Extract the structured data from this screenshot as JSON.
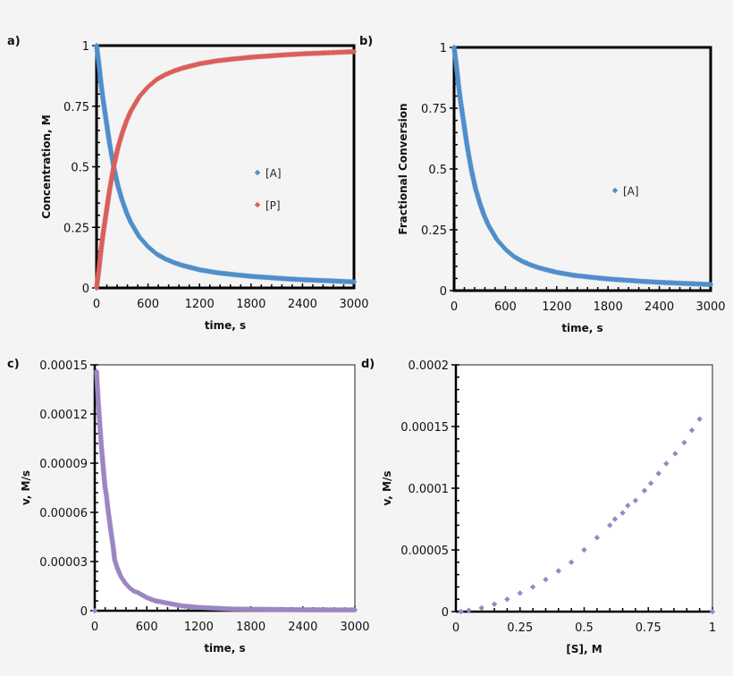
{
  "chart_data": [
    {
      "panel": "a)",
      "type": "scatter",
      "xlabel": "time, s",
      "ylabel": "Concentration, M",
      "xlim": [
        0,
        3000
      ],
      "ylim": [
        0,
        1
      ],
      "xticks": [
        "0",
        "600",
        "1200",
        "1800",
        "2400",
        "3000"
      ],
      "yticks": [
        "0",
        "0.25",
        "0.5",
        "0.75",
        "1"
      ],
      "legend": "right-middle",
      "grid": false,
      "series": [
        {
          "name": "[A]",
          "color": "#4f8fca",
          "x": [
            0,
            25,
            50,
            75,
            100,
            125,
            150,
            175,
            200,
            250,
            300,
            350,
            400,
            450,
            500,
            600,
            700,
            800,
            900,
            1000,
            1200,
            1400,
            1600,
            1800,
            2000,
            2200,
            2400,
            2600,
            2800,
            3000
          ],
          "y": [
            1,
            0.93,
            0.85,
            0.78,
            0.72,
            0.66,
            0.6,
            0.55,
            0.5,
            0.42,
            0.36,
            0.31,
            0.27,
            0.24,
            0.21,
            0.17,
            0.14,
            0.12,
            0.105,
            0.093,
            0.075,
            0.063,
            0.055,
            0.048,
            0.043,
            0.038,
            0.034,
            0.031,
            0.028,
            0.025
          ]
        },
        {
          "name": "[P]",
          "color": "#d9605a",
          "x": [
            0,
            25,
            50,
            75,
            100,
            125,
            150,
            175,
            200,
            250,
            300,
            350,
            400,
            450,
            500,
            600,
            700,
            800,
            900,
            1000,
            1200,
            1400,
            1600,
            1800,
            2000,
            2200,
            2400,
            2600,
            2800,
            3000
          ],
          "y": [
            0,
            0.07,
            0.15,
            0.22,
            0.28,
            0.34,
            0.4,
            0.45,
            0.5,
            0.58,
            0.64,
            0.69,
            0.73,
            0.76,
            0.79,
            0.83,
            0.86,
            0.88,
            0.895,
            0.907,
            0.925,
            0.937,
            0.945,
            0.952,
            0.957,
            0.962,
            0.966,
            0.969,
            0.972,
            0.975
          ]
        }
      ]
    },
    {
      "panel": "b)",
      "type": "scatter",
      "xlabel": "time, s",
      "ylabel": "Fractional Conversion",
      "xlim": [
        0,
        3000
      ],
      "ylim": [
        0,
        1
      ],
      "xticks": [
        "0",
        "600",
        "1200",
        "1800",
        "2400",
        "3000"
      ],
      "yticks": [
        "0",
        "0.25",
        "0.5",
        "0.75",
        "1"
      ],
      "legend": "right-middle",
      "grid": false,
      "series": [
        {
          "name": "[A]",
          "color": "#4f8fca",
          "x": [
            0,
            25,
            50,
            75,
            100,
            125,
            150,
            175,
            200,
            250,
            300,
            350,
            400,
            450,
            500,
            600,
            700,
            800,
            900,
            1000,
            1200,
            1400,
            1600,
            1800,
            2000,
            2200,
            2400,
            2600,
            2800,
            3000
          ],
          "y": [
            1,
            0.93,
            0.85,
            0.78,
            0.72,
            0.66,
            0.6,
            0.55,
            0.5,
            0.42,
            0.36,
            0.31,
            0.27,
            0.24,
            0.21,
            0.17,
            0.14,
            0.12,
            0.105,
            0.093,
            0.075,
            0.063,
            0.055,
            0.048,
            0.043,
            0.038,
            0.034,
            0.031,
            0.028,
            0.025
          ]
        }
      ]
    },
    {
      "panel": "c)",
      "type": "scatter",
      "xlabel": "time, s",
      "ylabel": "v, M/s",
      "xlim": [
        0,
        3000
      ],
      "ylim": [
        0,
        0.00015
      ],
      "xticks": [
        "0",
        "600",
        "1200",
        "1800",
        "2400",
        "3000"
      ],
      "yticks": [
        "0",
        "0.00003",
        "0.00006",
        "0.00009",
        "0.00012",
        "0.00015"
      ],
      "grid": false,
      "series": [
        {
          "color": "#9b86c2",
          "x": [
            0,
            20,
            30,
            40,
            50,
            60,
            70,
            80,
            90,
            100,
            110,
            120,
            135,
            150,
            170,
            190,
            210,
            230,
            260,
            300,
            350,
            400,
            450,
            500,
            600,
            700,
            800,
            900,
            1000,
            1200,
            1400,
            1600,
            2000,
            2400,
            2800,
            3000
          ],
          "y": [
            0,
            0.000146,
            0.000137,
            0.000128,
            0.00012,
            0.000112,
            0.000105,
            9.8e-05,
            9.2e-05,
            8.6e-05,
            8e-05,
            7.5e-05,
            7e-05,
            6.3e-05,
            5.5e-05,
            4.7e-05,
            4e-05,
            3.1e-05,
            2.6e-05,
            2.1e-05,
            1.7e-05,
            1.4e-05,
            1.2e-05,
            1.1e-05,
            8e-06,
            6e-06,
            5e-06,
            4e-06,
            3e-06,
            2e-06,
            1.5e-06,
            1e-06,
            8e-07,
            6e-07,
            5e-07,
            5e-07
          ]
        }
      ]
    },
    {
      "panel": "d)",
      "type": "scatter",
      "xlabel": "[S], M",
      "ylabel": "v, M/s",
      "xlim": [
        0,
        1
      ],
      "ylim": [
        0,
        0.0002
      ],
      "xticks": [
        "0",
        "0.25",
        "0.5",
        "0.75",
        "1"
      ],
      "yticks": [
        "0",
        "0.00005",
        "0.0001",
        "0.00015",
        "0.0002"
      ],
      "grid": false,
      "series": [
        {
          "color": "#9b86c2",
          "x": [
            0.02,
            0.05,
            0.1,
            0.15,
            0.2,
            0.25,
            0.3,
            0.35,
            0.4,
            0.45,
            0.5,
            0.55,
            0.6,
            0.62,
            0.65,
            0.67,
            0.7,
            0.735,
            0.76,
            0.79,
            0.82,
            0.855,
            0.89,
            0.92,
            0.95,
            1.0
          ],
          "y": [
            0,
            1e-06,
            3e-06,
            6e-06,
            1e-05,
            1.5e-05,
            2e-05,
            2.6e-05,
            3.3e-05,
            4e-05,
            5e-05,
            6e-05,
            7e-05,
            7.5e-05,
            8e-05,
            8.6e-05,
            9e-05,
            9.8e-05,
            0.000104,
            0.000112,
            0.00012,
            0.000128,
            0.000137,
            0.000147,
            0.000156,
            0
          ]
        }
      ]
    }
  ]
}
